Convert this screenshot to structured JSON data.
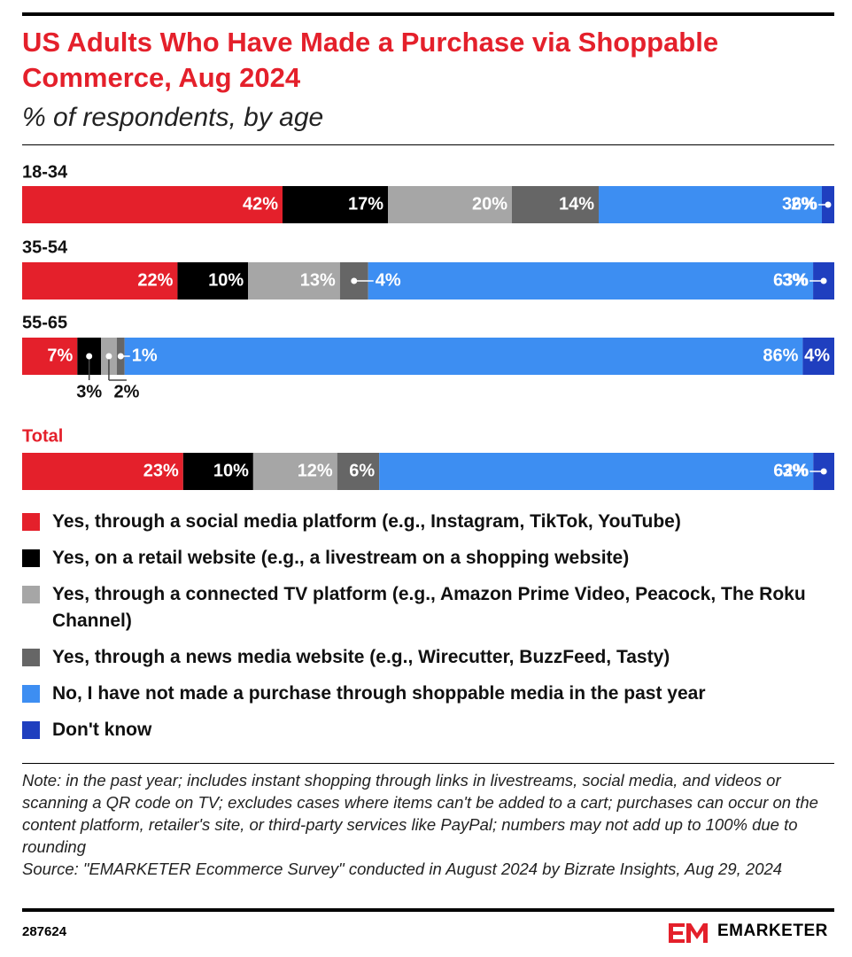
{
  "chart_data": {
    "type": "stacked-bar",
    "title": "US Adults Who Have Made a Purchase via Shoppable Commerce, Aug 2024",
    "subtitle": "% of respondents, by age",
    "categories": [
      "18-34",
      "35-54",
      "55-65",
      "Total"
    ],
    "series": [
      {
        "name": "Yes, through a social media platform (e.g., Instagram, TikTok, YouTube)",
        "color": "#e4202b",
        "values": [
          42,
          22,
          7,
          23
        ],
        "value_labels": [
          "42%",
          "22%",
          "7%",
          "23%"
        ]
      },
      {
        "name": "Yes, on a retail website (e.g., a livestream on a shopping website)",
        "color": "#000000",
        "values": [
          17,
          10,
          3,
          10
        ],
        "value_labels": [
          "17%",
          "10%",
          "3%",
          "10%"
        ]
      },
      {
        "name": "Yes, through a connected TV platform (e.g., Amazon Prime Video, Peacock, The Roku Channel)",
        "color": "#a6a6a6",
        "values": [
          20,
          13,
          2,
          12
        ],
        "value_labels": [
          "20%",
          "13%",
          "2%",
          "12%"
        ]
      },
      {
        "name": "Yes, through a news media website (e.g., Wirecutter, BuzzFeed, Tasty)",
        "color": "#666666",
        "values": [
          14,
          4,
          1,
          6
        ],
        "value_labels": [
          "14%",
          "4%",
          "1%",
          "6%"
        ]
      },
      {
        "name": "No, I have not made a purchase through shoppable media in the past year",
        "color": "#3d8ef2",
        "values": [
          36,
          63,
          86,
          62
        ],
        "value_labels": [
          "36%",
          "63%",
          "86%",
          "62%"
        ]
      },
      {
        "name": "Don't know",
        "color": "#1f3fbf",
        "values": [
          2,
          3,
          4,
          3
        ],
        "value_labels": [
          "2%",
          "3%",
          "4%",
          "3%"
        ]
      }
    ],
    "note": "Note: in the past year; includes instant shopping through links in livestreams, social media, and videos or scanning a QR code on TV; excludes cases where items can't be added to a cart; purchases can occur on the content platform, retailer's site, or third-party services like PayPal; numbers may not add up to 100% due to rounding",
    "source": "Source: \"EMARKETER Ecommerce Survey\" conducted in August 2024 by Bizrate Insights, Aug 29, 2024",
    "chart_id": "287624",
    "brand": "EMARKETER"
  }
}
